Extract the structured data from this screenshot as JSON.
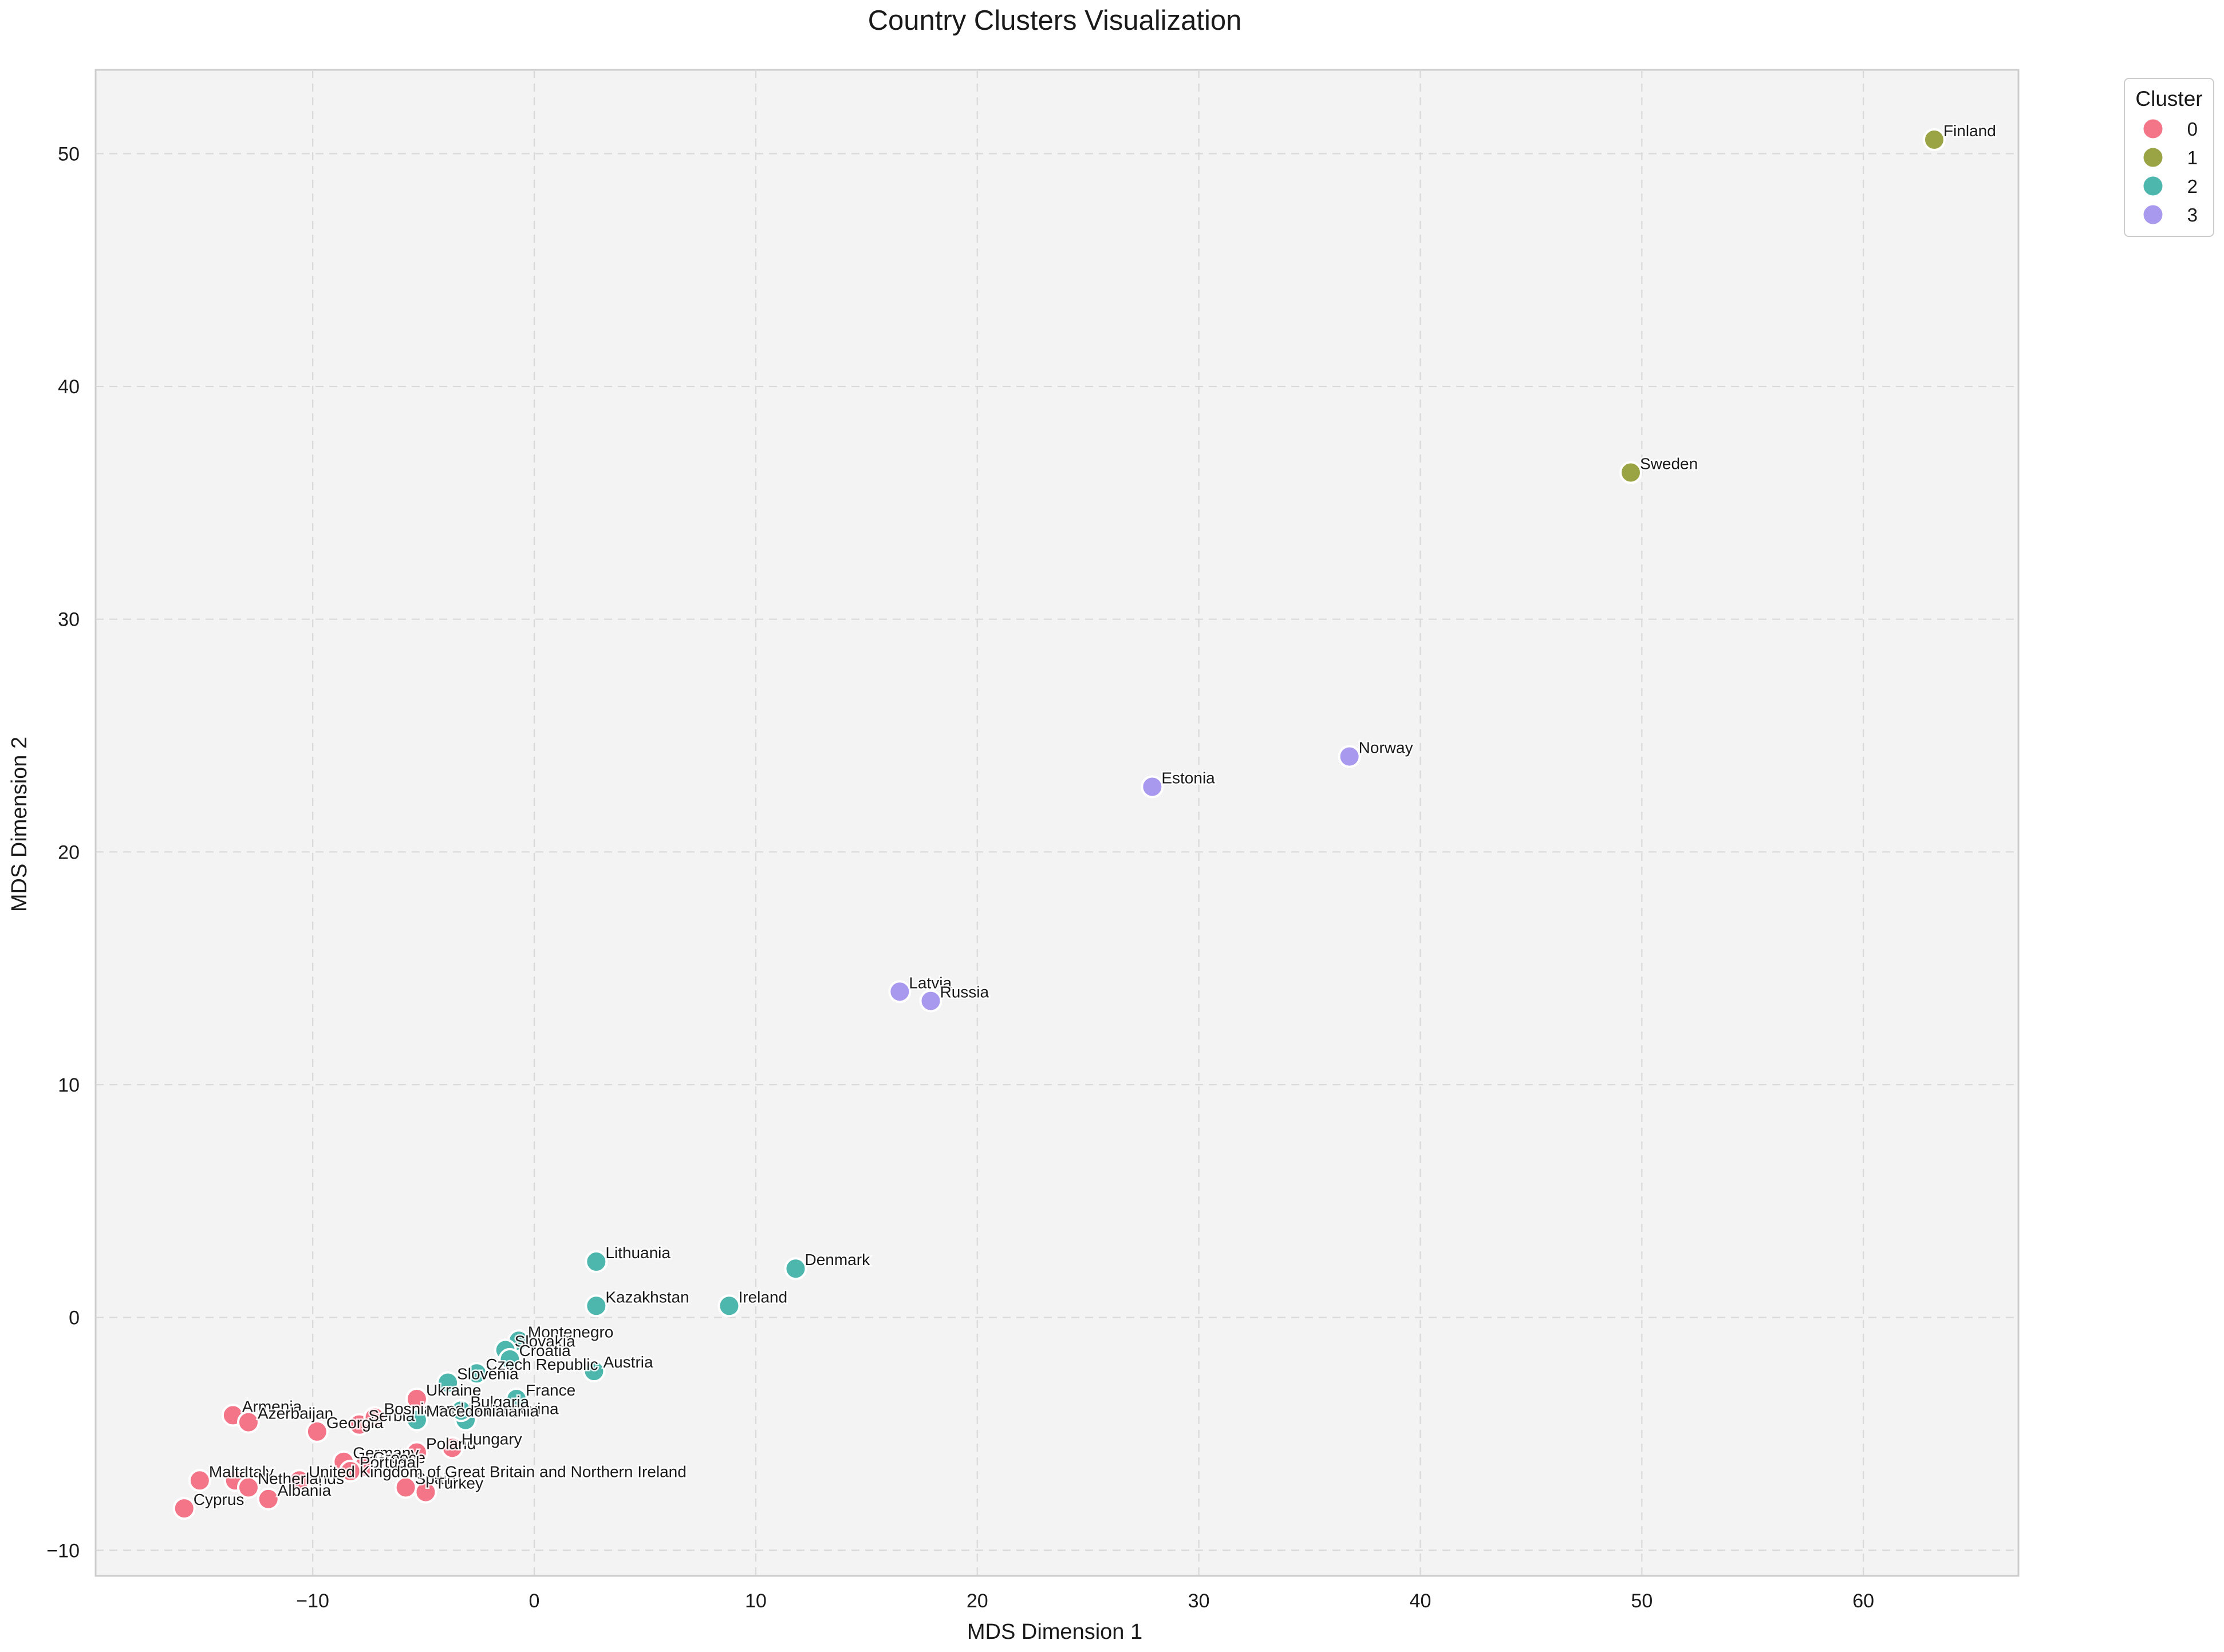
{
  "chart_data": {
    "type": "scatter",
    "title": "Country Clusters Visualization",
    "xlabel": "MDS Dimension 1",
    "ylabel": "MDS Dimension 2",
    "xlim": [
      -19.8,
      67.0
    ],
    "ylim": [
      -11.1,
      53.6
    ],
    "xticks": [
      -10,
      0,
      10,
      20,
      30,
      40,
      50,
      60
    ],
    "xtick_labels": [
      "−10",
      "0",
      "10",
      "20",
      "30",
      "40",
      "50",
      "60"
    ],
    "yticks": [
      -10,
      0,
      10,
      20,
      30,
      40,
      50
    ],
    "ytick_labels": [
      "−10",
      "0",
      "10",
      "20",
      "30",
      "40",
      "50"
    ],
    "grid": true,
    "legend": {
      "title": "Cluster",
      "placement": "outside-top-right",
      "entries": [
        {
          "label": "0",
          "color": "#f37587"
        },
        {
          "label": "1",
          "color": "#9aa445"
        },
        {
          "label": "2",
          "color": "#4db6ad"
        },
        {
          "label": "3",
          "color": "#a899ee"
        }
      ]
    },
    "series": [
      {
        "name": "0",
        "color": "#f37587",
        "points": [
          {
            "label": "Cyprus",
            "x": -15.8,
            "y": -8.2
          },
          {
            "label": "Malta",
            "x": -15.1,
            "y": -7.0
          },
          {
            "label": "Armenia",
            "x": -13.6,
            "y": -4.2
          },
          {
            "label": "Azerbaijan",
            "x": -12.9,
            "y": -4.5
          },
          {
            "label": "Italy",
            "x": -13.5,
            "y": -7.0
          },
          {
            "label": "Netherlands",
            "x": -12.9,
            "y": -7.3
          },
          {
            "label": "Albania",
            "x": -12.0,
            "y": -7.8
          },
          {
            "label": "Georgia",
            "x": -9.8,
            "y": -4.9
          },
          {
            "label": "Germany",
            "x": -8.6,
            "y": -6.2
          },
          {
            "label": "Greece",
            "x": -7.7,
            "y": -6.4
          },
          {
            "label": "Portugal",
            "x": -8.3,
            "y": -6.6
          },
          {
            "label": "Serbia",
            "x": -7.9,
            "y": -4.6
          },
          {
            "label": "Bosnia and Herzegovina",
            "x": -7.2,
            "y": -4.3
          },
          {
            "label": "Ukraine",
            "x": -5.3,
            "y": -3.5
          },
          {
            "label": "Poland",
            "x": -5.3,
            "y": -5.8
          },
          {
            "label": "Hungary",
            "x": -3.7,
            "y": -5.6
          },
          {
            "label": "Spain",
            "x": -5.8,
            "y": -7.3
          },
          {
            "label": "Turkey",
            "x": -4.9,
            "y": -7.5
          },
          {
            "label": "United Kingdom of Great Britain and Northern Ireland",
            "x": -10.6,
            "y": -7.0
          }
        ]
      },
      {
        "name": "1",
        "color": "#9aa445",
        "points": [
          {
            "label": "Finland",
            "x": 63.2,
            "y": 50.6
          },
          {
            "label": "Sweden",
            "x": 49.5,
            "y": 36.3
          }
        ]
      },
      {
        "name": "2",
        "color": "#4db6ad",
        "points": [
          {
            "label": "Lithuania",
            "x": 2.8,
            "y": 2.4
          },
          {
            "label": "Kazakhstan",
            "x": 2.8,
            "y": 0.5
          },
          {
            "label": "Denmark",
            "x": 11.8,
            "y": 2.1
          },
          {
            "label": "Ireland",
            "x": 8.8,
            "y": 0.5
          },
          {
            "label": "Montenegro",
            "x": -0.7,
            "y": -1.0
          },
          {
            "label": "Slovakia",
            "x": -1.3,
            "y": -1.4
          },
          {
            "label": "Croatia",
            "x": -1.1,
            "y": -1.8
          },
          {
            "label": "Czech Republic",
            "x": -2.6,
            "y": -2.4
          },
          {
            "label": "Austria",
            "x": 2.7,
            "y": -2.3
          },
          {
            "label": "Slovenia",
            "x": -3.9,
            "y": -2.8
          },
          {
            "label": "France",
            "x": -0.8,
            "y": -3.5
          },
          {
            "label": "Romania",
            "x": -3.1,
            "y": -4.4
          },
          {
            "label": "Bulgaria",
            "x": -3.3,
            "y": -4.0
          },
          {
            "label": "Macedonia",
            "x": -5.3,
            "y": -4.4
          }
        ]
      },
      {
        "name": "3",
        "color": "#a899ee",
        "points": [
          {
            "label": "Norway",
            "x": 36.8,
            "y": 24.1
          },
          {
            "label": "Estonia",
            "x": 27.9,
            "y": 22.8
          },
          {
            "label": "Latvia",
            "x": 16.5,
            "y": 14.0
          },
          {
            "label": "Russia",
            "x": 17.9,
            "y": 13.6
          }
        ]
      }
    ]
  }
}
